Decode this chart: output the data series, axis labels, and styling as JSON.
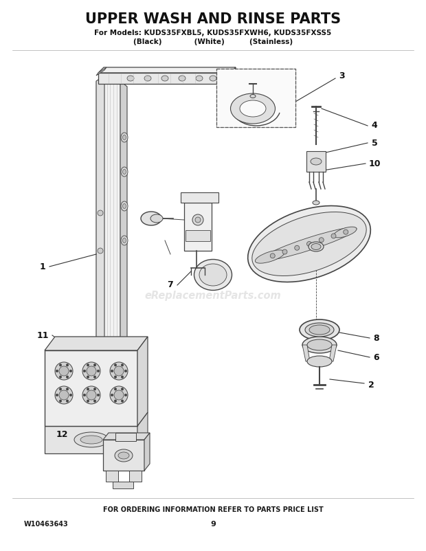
{
  "title": "UPPER WASH AND RINSE PARTS",
  "subtitle_line1": "For Models: KUDS35FXBL5, KUDS35FXWH6, KUDS35FXSS5",
  "subtitle_line2": "(Black)             (White)          (Stainless)",
  "footer_left": "W10463643",
  "footer_center": "FOR ORDERING INFORMATION REFER TO PARTS PRICE LIST",
  "footer_page": "9",
  "bg_color": "#ffffff",
  "text_color": "#1a1a1a",
  "watermark": "eReplacementParts.com",
  "line_color": "#444444"
}
